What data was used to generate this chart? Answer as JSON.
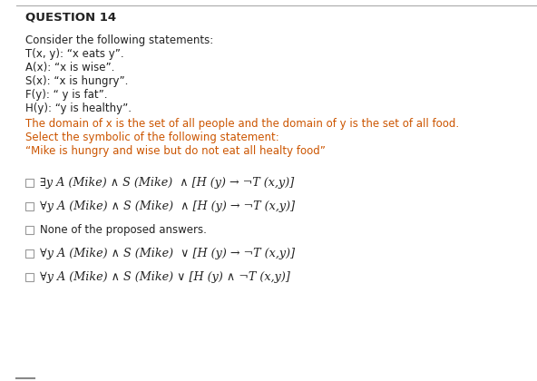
{
  "title": "QUESTION 14",
  "background_color": "#ffffff",
  "text_color_black": "#222222",
  "text_color_orange": "#cc5500",
  "intro_lines": [
    "Consider the following statements:",
    "T(x, y): “x eats y”.",
    "A(x): “x is wise”.",
    "S(x): “x is hungry”.",
    "F(y): “ y is fat”.",
    "H(y): “y is healthy”."
  ],
  "orange_lines": [
    "The domain of x is the set of all people and the domain of y is the set of all food.",
    "Select the symbolic of the following statement:",
    "“Mike is hungry and wise but do not eat all healty food”"
  ],
  "options": [
    "∃y A (Mike) ∧ S (Mike)  ∧ [H (y) → ¬T (x,y)]",
    "∀y A (Mike) ∧ S (Mike)  ∧ [H (y) → ¬T (x,y)]",
    "None of the proposed answers.",
    "∀y A (Mike) ∧ S (Mike)  ∨ [H (y) → ¬T (x,y)]",
    "∀y A (Mike) ∧ S (Mike) ∨ [H (y) ∧ ¬T (x,y)]"
  ],
  "top_border_color": "#aaaaaa",
  "left_border_color": "#888888",
  "checkbox_color": "#999999"
}
